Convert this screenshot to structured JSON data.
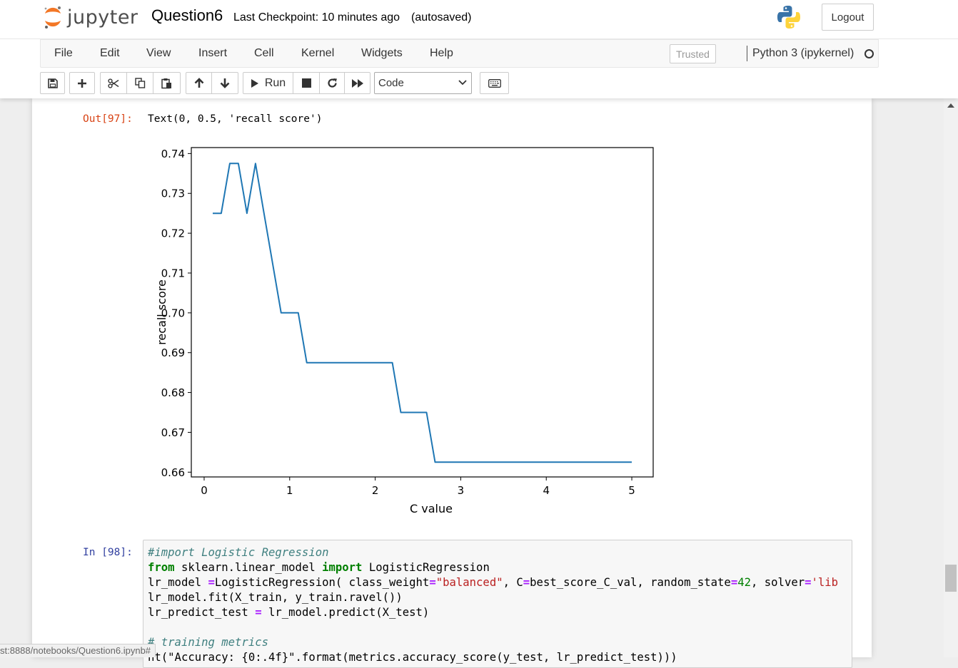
{
  "header": {
    "logo_text": "jupyter",
    "notebook_name": "Question6",
    "checkpoint": "Last Checkpoint: 10 minutes ago",
    "autosave": "(autosaved)",
    "logout_label": "Logout"
  },
  "menu": {
    "items": [
      "File",
      "Edit",
      "View",
      "Insert",
      "Cell",
      "Kernel",
      "Widgets",
      "Help"
    ],
    "trusted_label": "Trusted",
    "kernel_name": "Python 3 (ipykernel)"
  },
  "toolbar": {
    "run_label": "Run",
    "cell_type": "Code",
    "icons": [
      "save-icon",
      "plus-icon",
      "cut-icon",
      "copy-icon",
      "paste-icon",
      "arrow-up-icon",
      "arrow-down-icon",
      "run-icon",
      "stop-icon",
      "restart-icon",
      "fast-forward-icon",
      "keyboard-icon"
    ]
  },
  "output_cell": {
    "prompt": "Out[97]:",
    "text": "Text(0, 0.5, 'recall score')"
  },
  "chart_data": {
    "type": "line",
    "xlabel": "C value",
    "ylabel": "recall score",
    "xlim": [
      -0.15,
      5.25
    ],
    "ylim": [
      0.6588,
      0.7415
    ],
    "xticks": [
      0,
      1,
      2,
      3,
      4,
      5
    ],
    "yticks": [
      0.66,
      0.67,
      0.68,
      0.69,
      0.7,
      0.71,
      0.72,
      0.73,
      0.74
    ],
    "xtick_labels": [
      "0",
      "1",
      "2",
      "3",
      "4",
      "5"
    ],
    "ytick_labels": [
      "0.66",
      "0.67",
      "0.68",
      "0.69",
      "0.70",
      "0.71",
      "0.72",
      "0.73",
      "0.74"
    ],
    "grid": false,
    "color": "#1f77b4",
    "series": [
      {
        "x": [
          0.1,
          0.2,
          0.3,
          0.4,
          0.5,
          0.6,
          0.7,
          0.8,
          0.9,
          1.0,
          1.1,
          1.2,
          1.3,
          1.4,
          1.5,
          1.6,
          1.7,
          1.8,
          1.9,
          2.0,
          2.1,
          2.2,
          2.3,
          2.4,
          2.5,
          2.6,
          2.7,
          2.8,
          2.9,
          3.0,
          3.5,
          4.0,
          4.5,
          5.0
        ],
        "y": [
          0.725,
          0.725,
          0.7375,
          0.7375,
          0.725,
          0.7375,
          0.725,
          0.7125,
          0.7,
          0.7,
          0.7,
          0.6875,
          0.6875,
          0.6875,
          0.6875,
          0.6875,
          0.6875,
          0.6875,
          0.6875,
          0.6875,
          0.6875,
          0.6875,
          0.675,
          0.675,
          0.675,
          0.675,
          0.6625,
          0.6625,
          0.6625,
          0.6625,
          0.6625,
          0.6625,
          0.6625,
          0.6625
        ]
      }
    ]
  },
  "input_cell": {
    "prompt": "In [98]:",
    "lines": [
      [
        {
          "t": "#import Logistic Regression",
          "c": "cm"
        }
      ],
      [
        {
          "t": "from",
          "c": "kw"
        },
        {
          "t": " sklearn.linear_model ",
          "c": ""
        },
        {
          "t": "import",
          "c": "kw"
        },
        {
          "t": " LogisticRegression",
          "c": ""
        }
      ],
      [
        {
          "t": "lr_model ",
          "c": ""
        },
        {
          "t": "=",
          "c": "op"
        },
        {
          "t": "LogisticRegression( class_weight",
          "c": ""
        },
        {
          "t": "=",
          "c": "op"
        },
        {
          "t": "\"balanced\"",
          "c": "st"
        },
        {
          "t": ", C",
          "c": ""
        },
        {
          "t": "=",
          "c": "op"
        },
        {
          "t": "best_score_C_val, random_state",
          "c": ""
        },
        {
          "t": "=",
          "c": "op"
        },
        {
          "t": "42",
          "c": "nu"
        },
        {
          "t": ", solver",
          "c": ""
        },
        {
          "t": "=",
          "c": "op"
        },
        {
          "t": "'lib",
          "c": "st"
        }
      ],
      [
        {
          "t": "lr_model.fit(X_train, y_train.ravel())",
          "c": ""
        }
      ],
      [
        {
          "t": "lr_predict_test ",
          "c": ""
        },
        {
          "t": "=",
          "c": "op"
        },
        {
          "t": " lr_model.predict(X_test)",
          "c": ""
        }
      ],
      [
        {
          "t": "",
          "c": ""
        }
      ],
      [
        {
          "t": "# training metrics",
          "c": "cm"
        }
      ],
      [
        {
          "t": "nt(\"Accuracy: {0:.4f}\".format(metrics.accuracy_score(y_test, lr_predict_test)))",
          "c": ""
        }
      ]
    ]
  },
  "status_url": "st:8888/notebooks/Question6.ipynb#"
}
